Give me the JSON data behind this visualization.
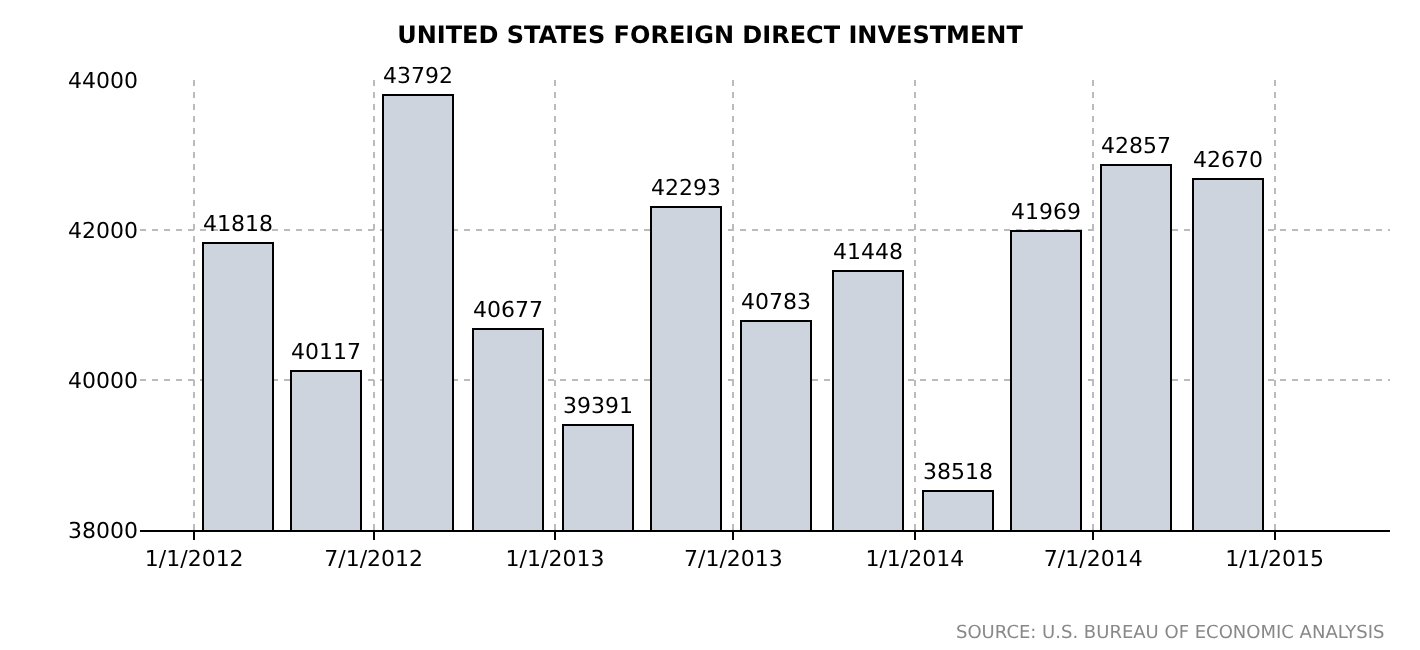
{
  "chart_data": {
    "type": "bar",
    "title": "UNITED STATES FOREIGN DIRECT INVESTMENT",
    "x": [
      "2012-02-15",
      "2012-05-15",
      "2012-08-15",
      "2012-11-15",
      "2013-02-15",
      "2013-05-15",
      "2013-08-15",
      "2013-11-15",
      "2014-02-15",
      "2014-05-15",
      "2014-08-15",
      "2014-11-15"
    ],
    "values": [
      41818,
      40117,
      43792,
      40677,
      39391,
      42293,
      40783,
      41448,
      38518,
      41969,
      42857,
      42670
    ],
    "color": "#cdd4dd",
    "data_labels": true,
    "ylim": [
      38000,
      44000
    ],
    "yticks": [
      38000,
      40000,
      42000,
      44000
    ],
    "xlim": [
      "2011-11-07",
      "2015-04-28"
    ],
    "xticks": [
      {
        "value": "2012-01-01",
        "label": "1/1/2012"
      },
      {
        "value": "2012-07-01",
        "label": "7/1/2012"
      },
      {
        "value": "2013-01-01",
        "label": "1/1/2013"
      },
      {
        "value": "2013-07-01",
        "label": "7/1/2013"
      },
      {
        "value": "2014-01-01",
        "label": "1/1/2014"
      },
      {
        "value": "2014-07-01",
        "label": "7/1/2014"
      },
      {
        "value": "2015-01-01",
        "label": "1/1/2015"
      }
    ],
    "grid": true,
    "annotations": [
      "SOURCE: U.S. BUREAU OF ECONOMIC ANALYSIS"
    ]
  }
}
